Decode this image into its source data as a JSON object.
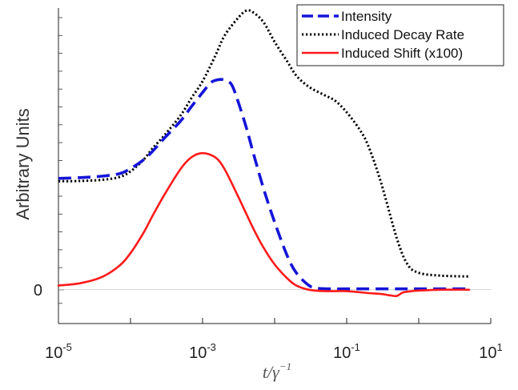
{
  "chart_data": {
    "type": "line",
    "xscale": "log",
    "xlim": [
      1e-05,
      10
    ],
    "ylim": [
      -0.12,
      1.0
    ],
    "xticks": [
      1e-05,
      0.001,
      0.1,
      10
    ],
    "xtick_labels": [
      {
        "base": "10",
        "exp": "-5"
      },
      {
        "base": "10",
        "exp": "-3"
      },
      {
        "base": "10",
        "exp": "-1"
      },
      {
        "base": "10",
        "exp": "1"
      }
    ],
    "ytick_labels": [
      {
        "value": 0,
        "label": "0"
      }
    ],
    "y_zero_line": true,
    "xlabel": {
      "base": "t/γ",
      "exp": "−1"
    },
    "ylabel": "Arbitrary Units",
    "legend": {
      "position": "top-right"
    },
    "series": [
      {
        "name": "Intensity",
        "color": "#1515d8",
        "style": "dashed",
        "x": [
          1e-05,
          2e-05,
          4e-05,
          7e-05,
          0.0001,
          0.00015,
          0.0002,
          0.0003,
          0.0005,
          0.0007,
          0.001,
          0.0013,
          0.0016,
          0.002,
          0.0025,
          0.003,
          0.004,
          0.005,
          0.007,
          0.01,
          0.015,
          0.02,
          0.03,
          0.04,
          0.06,
          0.1,
          0.2,
          0.5,
          1,
          5
        ],
        "y": [
          0.395,
          0.398,
          0.403,
          0.412,
          0.43,
          0.46,
          0.49,
          0.54,
          0.6,
          0.65,
          0.7,
          0.735,
          0.745,
          0.745,
          0.73,
          0.68,
          0.58,
          0.49,
          0.36,
          0.24,
          0.12,
          0.06,
          0.015,
          0.005,
          0.003,
          0.003,
          0.003,
          0.003,
          0.003,
          0.003
        ]
      },
      {
        "name": "Induced Decay Rate",
        "color": "#000000",
        "style": "dotted",
        "x": [
          1e-05,
          2e-05,
          4e-05,
          7e-05,
          0.0001,
          0.00015,
          0.0002,
          0.0003,
          0.0005,
          0.0007,
          0.001,
          0.0015,
          0.002,
          0.003,
          0.004,
          0.005,
          0.007,
          0.01,
          0.015,
          0.02,
          0.03,
          0.05,
          0.07,
          0.1,
          0.15,
          0.2,
          0.3,
          0.5,
          0.7,
          1,
          2,
          5
        ],
        "y": [
          0.385,
          0.386,
          0.39,
          0.4,
          0.42,
          0.46,
          0.5,
          0.55,
          0.62,
          0.68,
          0.74,
          0.83,
          0.9,
          0.96,
          0.99,
          0.985,
          0.95,
          0.88,
          0.81,
          0.76,
          0.72,
          0.69,
          0.67,
          0.63,
          0.57,
          0.51,
          0.38,
          0.18,
          0.09,
          0.06,
          0.05,
          0.047
        ]
      },
      {
        "name": "Induced Shift (x100)",
        "color": "#ff1a1a",
        "style": "solid",
        "x": [
          1e-05,
          2e-05,
          4e-05,
          7e-05,
          0.0001,
          0.00015,
          0.0002,
          0.0003,
          0.0005,
          0.0007,
          0.001,
          0.0015,
          0.002,
          0.003,
          0.005,
          0.007,
          0.01,
          0.015,
          0.02,
          0.03,
          0.05,
          0.1,
          0.2,
          0.3,
          0.4,
          0.5,
          0.6,
          0.8,
          1,
          2,
          5
        ],
        "y": [
          0.015,
          0.023,
          0.045,
          0.085,
          0.13,
          0.2,
          0.26,
          0.34,
          0.43,
          0.47,
          0.485,
          0.47,
          0.43,
          0.34,
          0.22,
          0.15,
          0.09,
          0.04,
          0.015,
          0.0,
          -0.005,
          -0.005,
          -0.012,
          -0.015,
          -0.02,
          -0.022,
          -0.01,
          -0.005,
          -0.003,
          0.0,
          0.0
        ]
      }
    ]
  }
}
